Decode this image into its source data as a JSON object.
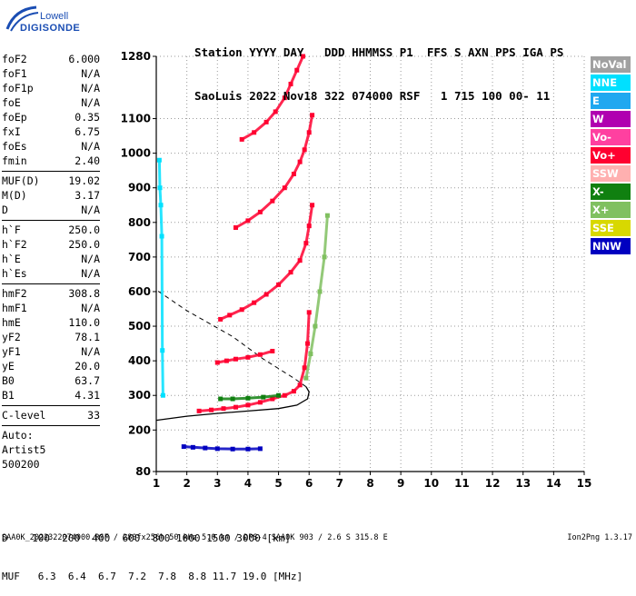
{
  "logo": {
    "line1": "Lowell",
    "line2": "DIGISONDE"
  },
  "header": {
    "line1": "Station YYYY DAY   DDD HHMMSS P1  FFS S AXN PPS IGA PS",
    "line2": "SaoLuis 2022 Nov18 322 074000 RSF   1 715 100 00- 11"
  },
  "params": {
    "group1": [
      {
        "name": "foF2",
        "value": "6.000"
      },
      {
        "name": "foF1",
        "value": "N/A"
      },
      {
        "name": "foF1p",
        "value": "N/A"
      },
      {
        "name": "foE",
        "value": "N/A"
      },
      {
        "name": "foEp",
        "value": "0.35"
      },
      {
        "name": "fxI",
        "value": "6.75"
      },
      {
        "name": "foEs",
        "value": "N/A"
      },
      {
        "name": "fmin",
        "value": "2.40"
      }
    ],
    "group2": [
      {
        "name": "MUF(D)",
        "value": "19.02"
      },
      {
        "name": "M(D)",
        "value": "3.17"
      },
      {
        "name": "D",
        "value": "N/A"
      }
    ],
    "group3": [
      {
        "name": "h`F",
        "value": "250.0"
      },
      {
        "name": "h`F2",
        "value": "250.0"
      },
      {
        "name": "h`E",
        "value": "N/A"
      },
      {
        "name": "h`Es",
        "value": "N/A"
      }
    ],
    "group4": [
      {
        "name": "hmF2",
        "value": "308.8"
      },
      {
        "name": "hmF1",
        "value": "N/A"
      },
      {
        "name": "hmE",
        "value": "110.0"
      },
      {
        "name": "yF2",
        "value": "78.1"
      },
      {
        "name": "yF1",
        "value": "N/A"
      },
      {
        "name": "yE",
        "value": "20.0"
      },
      {
        "name": "B0",
        "value": "63.7"
      },
      {
        "name": "B1",
        "value": "4.31"
      }
    ],
    "clevel": {
      "name": "C-level",
      "value": "33"
    },
    "auto": [
      "Auto:",
      "Artist5",
      "500200"
    ]
  },
  "legend": [
    {
      "label": "NoVal",
      "color": "#a0a0a0"
    },
    {
      "label": "NNE",
      "color": "#00e0ff"
    },
    {
      "label": "E",
      "color": "#20a8f0"
    },
    {
      "label": "W",
      "color": "#b000b0"
    },
    {
      "label": "Vo-",
      "color": "#ff40a0"
    },
    {
      "label": "Vo+",
      "color": "#ff0030"
    },
    {
      "label": "SSW",
      "color": "#ffb0b0"
    },
    {
      "label": "X-",
      "color": "#108010"
    },
    {
      "label": "X+",
      "color": "#80c060"
    },
    {
      "label": "SSE",
      "color": "#d8d800"
    },
    {
      "label": "NNW",
      "color": "#0000c0"
    }
  ],
  "muf_table": {
    "line1": "D    100  200  400  600  800 1000 1500 3000 [km]",
    "line2": "MUF   6.3  6.4  6.7  7.2  7.8  8.8 11.7 19.0 [MHz]"
  },
  "footer": {
    "left": "SAA0K_2022322074000.RSF / 280fx256h 50 kHz 5.0 km / DPS-4 SAA0K 903 / 2.6 S 315.8 E",
    "right": "Ion2Png 1.3.17"
  },
  "chart_data": {
    "type": "scatter",
    "xlim": [
      1,
      15
    ],
    "ylim": [
      80,
      1280
    ],
    "x_ticks": [
      1,
      2,
      3,
      4,
      5,
      6,
      7,
      8,
      9,
      10,
      11,
      12,
      13,
      14,
      15
    ],
    "y_ticks": [
      80,
      200,
      300,
      400,
      500,
      600,
      700,
      800,
      900,
      1000,
      1100,
      1280
    ],
    "grid": true,
    "legend_position": "right",
    "series": [
      {
        "color": "#ff0030",
        "x": [
          2.4,
          2.8,
          3.2,
          3.6,
          4.0,
          4.4,
          4.8,
          5.2,
          5.5,
          5.7,
          5.85,
          5.95,
          6.0
        ],
        "values": [
          255,
          258,
          262,
          266,
          272,
          280,
          290,
          300,
          312,
          330,
          380,
          450,
          540
        ]
      },
      {
        "color": "#ff0030",
        "x": [
          3.1,
          3.4,
          3.8,
          4.2,
          4.6,
          5.0,
          5.4,
          5.7,
          5.9,
          6.0,
          6.1
        ],
        "values": [
          520,
          532,
          548,
          568,
          592,
          620,
          656,
          690,
          740,
          790,
          850
        ]
      },
      {
        "color": "#ff0030",
        "x": [
          3.6,
          4.0,
          4.4,
          4.8,
          5.2,
          5.5,
          5.7,
          5.85,
          6.0,
          6.1
        ],
        "values": [
          785,
          805,
          830,
          862,
          900,
          940,
          975,
          1010,
          1060,
          1110
        ]
      },
      {
        "color": "#ff0030",
        "x": [
          3.8,
          4.2,
          4.6,
          4.9,
          5.2,
          5.4,
          5.6,
          5.8
        ],
        "values": [
          1040,
          1060,
          1090,
          1120,
          1160,
          1200,
          1240,
          1280
        ]
      },
      {
        "color": "#ff0030",
        "x": [
          3.0,
          3.3,
          3.6,
          4.0,
          4.4,
          4.8
        ],
        "values": [
          395,
          400,
          405,
          410,
          418,
          428
        ]
      },
      {
        "color": "#0000c0",
        "x": [
          1.9,
          2.2,
          2.6,
          3.0,
          3.5,
          4.0,
          4.4
        ],
        "values": [
          152,
          150,
          148,
          146,
          145,
          145,
          146
        ]
      },
      {
        "color": "#108010",
        "x": [
          3.1,
          3.5,
          4.0,
          4.5,
          5.0
        ],
        "values": [
          290,
          290,
          292,
          295,
          300
        ]
      },
      {
        "color": "#80c060",
        "x": [
          5.9,
          6.05,
          6.2,
          6.35,
          6.5,
          6.6
        ],
        "values": [
          350,
          420,
          500,
          600,
          700,
          820
        ]
      },
      {
        "color": "#00e0ff",
        "x": [
          1.1,
          1.12,
          1.15,
          1.18,
          1.2,
          1.22
        ],
        "values": [
          980,
          900,
          850,
          760,
          430,
          300
        ]
      }
    ],
    "profile_curve": {
      "x": [
        1.0,
        2.0,
        3.0,
        4.0,
        5.0,
        5.6,
        5.95,
        6.0,
        5.9,
        5.5,
        4.5,
        3.5,
        2.0,
        1.0
      ],
      "values": [
        228,
        240,
        248,
        255,
        262,
        272,
        290,
        310,
        325,
        350,
        405,
        470,
        545,
        605
      ]
    }
  }
}
